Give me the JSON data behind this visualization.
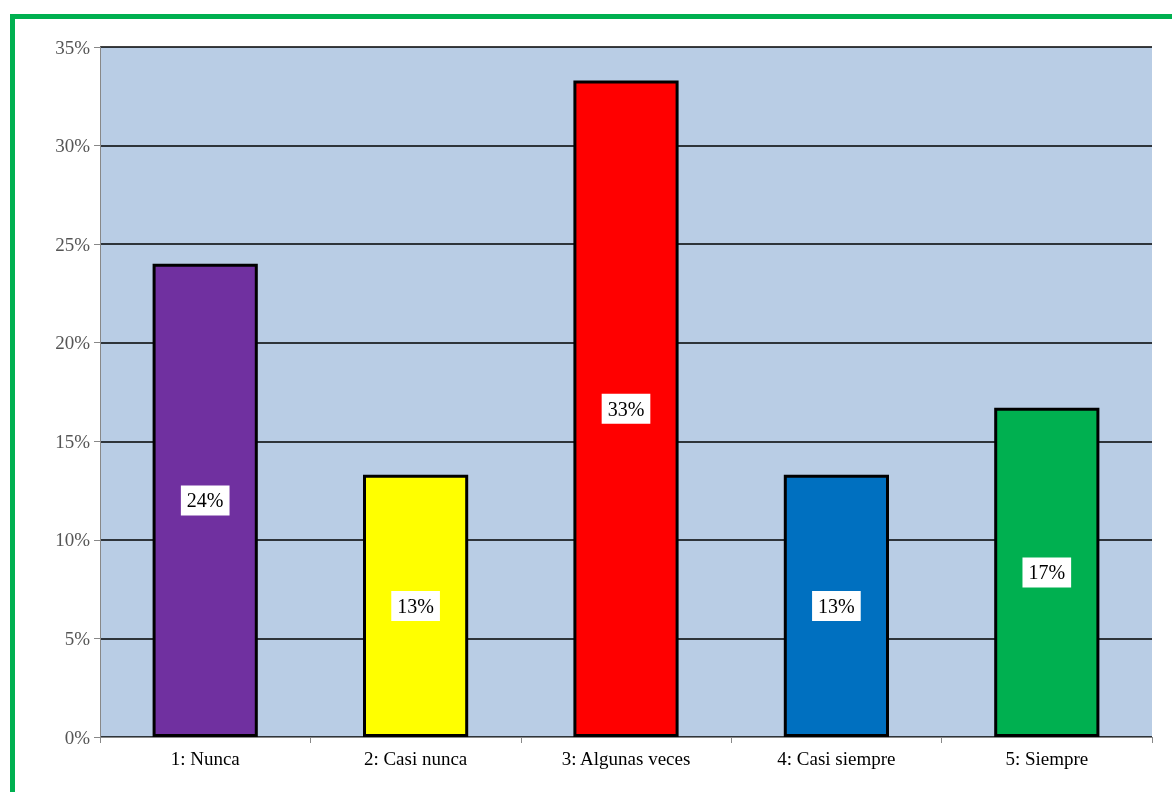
{
  "chart_data": {
    "type": "bar",
    "categories": [
      "1: Nunca",
      "2: Casi nunca",
      "3: Algunas veces",
      "4: Casi siempre",
      "5: Siempre"
    ],
    "values": [
      24,
      13.3,
      33.3,
      13.3,
      16.7
    ],
    "value_labels": [
      "24%",
      "13%",
      "33%",
      "13%",
      "17%"
    ],
    "colors": [
      "#7030a0",
      "#ffff00",
      "#ff0000",
      "#0070c0",
      "#00b050"
    ],
    "ylim": [
      0,
      35
    ],
    "yticks": [
      {
        "value": 0,
        "label": "0%"
      },
      {
        "value": 5,
        "label": "5%"
      },
      {
        "value": 10,
        "label": "10%"
      },
      {
        "value": 15,
        "label": "15%"
      },
      {
        "value": 20,
        "label": "20%"
      },
      {
        "value": 25,
        "label": "25%"
      },
      {
        "value": 30,
        "label": "30%"
      },
      {
        "value": 35,
        "label": "35%"
      }
    ],
    "grid": "y"
  }
}
